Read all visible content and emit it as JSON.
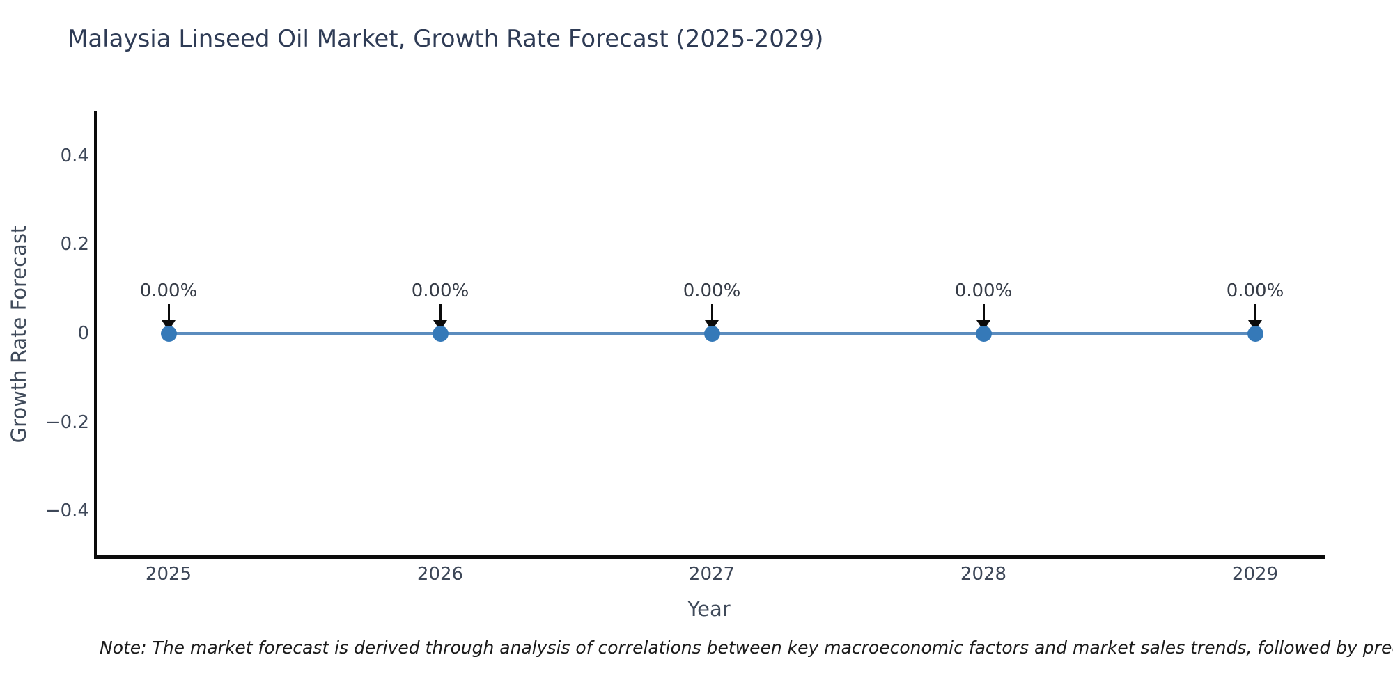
{
  "title": "Malaysia Linseed Oil Market, Growth Rate Forecast (2025-2029)",
  "note": "Note: The market forecast is derived through analysis of correlations between key macroeconomic factors and market sales trends, followed by predictive modeling to project future sales.",
  "chart_data": {
    "type": "line",
    "title": "Malaysia Linseed Oil Market, Growth Rate Forecast (2025-2029)",
    "x": [
      "2025",
      "2026",
      "2027",
      "2028",
      "2029"
    ],
    "series": [
      {
        "name": "Growth Rate Forecast",
        "values": [
          0,
          0,
          0,
          0,
          0
        ],
        "point_labels": [
          "0.00%",
          "0.00%",
          "0.00%",
          "0.00%",
          "0.00%"
        ]
      }
    ],
    "xlabel": "Year",
    "ylabel": "Growth Rate Forecast",
    "ytick_labels": [
      "0.4",
      "0.2",
      "0",
      "−0.2",
      "−0.4"
    ],
    "ytick_values": [
      0.4,
      0.2,
      0,
      -0.2,
      -0.4
    ],
    "ylim": [
      -0.5,
      0.5
    ],
    "grid": false,
    "legend_position": "none",
    "annotation_arrows": "black down-arrows from labels to points"
  },
  "colors": {
    "background": "#ffffff",
    "title": "#2e3b55",
    "axis_spine": "#0b0b0b",
    "tick_label": "#3d4758",
    "line": "#5b8cbe",
    "marker": "#3579b8",
    "annotation_text": "#363c47",
    "note_text": "#1a1a1a"
  }
}
